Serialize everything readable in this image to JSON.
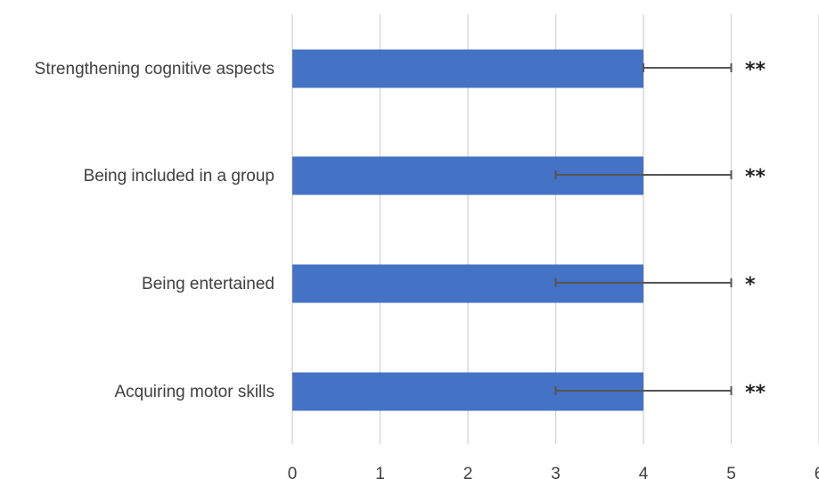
{
  "chart_data": {
    "type": "bar",
    "orientation": "horizontal",
    "categories": [
      "Strengthening cognitive aspects",
      "Being included in a group",
      "Being entertained",
      "Acquiring motor skills"
    ],
    "values": [
      4,
      4,
      4,
      4
    ],
    "error_low": [
      4,
      3,
      3,
      3
    ],
    "error_high": [
      5,
      5,
      5,
      5
    ],
    "significance": [
      "**",
      "**",
      "*",
      "**"
    ],
    "x_ticks": [
      "0",
      "1",
      "2",
      "3",
      "4",
      "5",
      "6"
    ],
    "xlim": [
      0,
      6
    ],
    "title": "",
    "xlabel": "",
    "ylabel": "",
    "grid": "vertical",
    "legend": "none",
    "colors": {
      "bar": "#4472c4",
      "grid": "#d9d9d9",
      "error": "#555555"
    }
  }
}
